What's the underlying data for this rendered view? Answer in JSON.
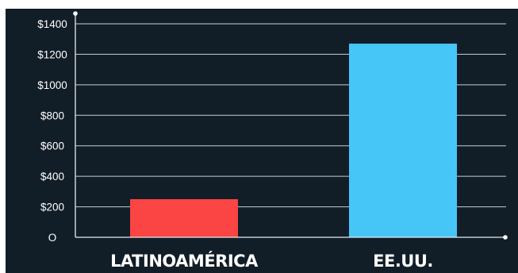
{
  "chart_data": {
    "type": "bar",
    "categories": [
      "LATINOAMÉRICA",
      "EE.UU."
    ],
    "values": [
      250,
      1270
    ],
    "colors": [
      "#fb4444",
      "#45c6f7"
    ],
    "yticks": [
      "O",
      "$200",
      "$400",
      "$600",
      "$800",
      "$1000",
      "$1200",
      "$1400"
    ],
    "ylim": [
      0,
      1400
    ],
    "grid": true,
    "background": "#111d27",
    "title": "",
    "xlabel": "",
    "ylabel": ""
  }
}
